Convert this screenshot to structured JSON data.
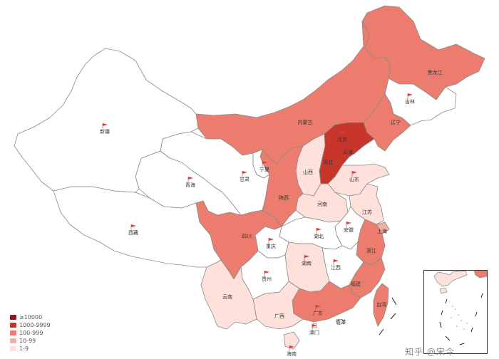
{
  "map": {
    "legend": [
      {
        "label": "≥10000",
        "color": "#8b1a1a"
      },
      {
        "label": "1000-9999",
        "color": "#c8352b"
      },
      {
        "label": "100-999",
        "color": "#ec7d6e"
      },
      {
        "label": "10-99",
        "color": "#f5ada1"
      },
      {
        "label": "1-9",
        "color": "#fde1da"
      }
    ],
    "no_data_color": "#ffffff",
    "provinces": [
      {
        "name": "黑龙江",
        "tier": "100-999"
      },
      {
        "name": "吉林",
        "tier": "none"
      },
      {
        "name": "辽宁",
        "tier": "100-999"
      },
      {
        "name": "内蒙古",
        "tier": "100-999"
      },
      {
        "name": "北京",
        "tier": "1000-9999"
      },
      {
        "name": "天津",
        "tier": "1000-9999"
      },
      {
        "name": "河北",
        "tier": "1000-9999"
      },
      {
        "name": "山西",
        "tier": "1-9"
      },
      {
        "name": "山东",
        "tier": "1-9"
      },
      {
        "name": "河南",
        "tier": "1-9"
      },
      {
        "name": "江苏",
        "tier": "1-9"
      },
      {
        "name": "上海",
        "tier": "10-99"
      },
      {
        "name": "安徽",
        "tier": "none"
      },
      {
        "name": "湖北",
        "tier": "none"
      },
      {
        "name": "浙江",
        "tier": "100-999"
      },
      {
        "name": "江西",
        "tier": "none"
      },
      {
        "name": "湖南",
        "tier": "1-9"
      },
      {
        "name": "福建",
        "tier": "100-999"
      },
      {
        "name": "广东",
        "tier": "100-999"
      },
      {
        "name": "广西",
        "tier": "1-9"
      },
      {
        "name": "海南",
        "tier": "1-9"
      },
      {
        "name": "香港",
        "tier": "none"
      },
      {
        "name": "澳门",
        "tier": "none"
      },
      {
        "name": "台湾",
        "tier": "100-999"
      },
      {
        "name": "重庆",
        "tier": "none"
      },
      {
        "name": "四川",
        "tier": "100-999"
      },
      {
        "name": "贵州",
        "tier": "none"
      },
      {
        "name": "云南",
        "tier": "1-9"
      },
      {
        "name": "西藏",
        "tier": "none"
      },
      {
        "name": "陕西",
        "tier": "100-999"
      },
      {
        "name": "宁夏",
        "tier": "none"
      },
      {
        "name": "甘肃",
        "tier": "none"
      },
      {
        "name": "青海",
        "tier": "none"
      },
      {
        "name": "新疆",
        "tier": "none"
      }
    ]
  },
  "watermark": "知乎 @宋今"
}
